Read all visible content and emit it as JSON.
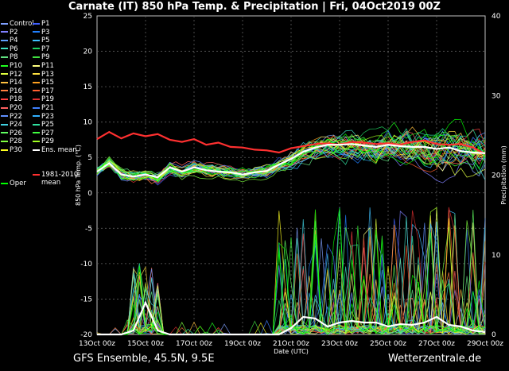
{
  "title": "Carnate  (IT)  850 hPa Temp. & Precipitation | Fri, 04Oct2019 00Z",
  "footer_left": "GFS Ensemble, 45.5N, 9.5E",
  "footer_right": "Wetterzentrale.de",
  "legend": [
    {
      "label": "Control",
      "color": "#7fa0ff"
    },
    {
      "label": "P1",
      "color": "#4060ff"
    },
    {
      "label": "P2",
      "color": "#8080ff"
    },
    {
      "label": "P3",
      "color": "#2080ff"
    },
    {
      "label": "P4",
      "color": "#60a0ff"
    },
    {
      "label": "P5",
      "color": "#40c0ff"
    },
    {
      "label": "P6",
      "color": "#40e0c0"
    },
    {
      "label": "P7",
      "color": "#20d060"
    },
    {
      "label": "P8",
      "color": "#60e080"
    },
    {
      "label": "P9",
      "color": "#40e040"
    },
    {
      "label": "P10",
      "color": "#20ff20"
    },
    {
      "label": "P11",
      "color": "#ffff80"
    },
    {
      "label": "P12",
      "color": "#e0ff40"
    },
    {
      "label": "P13",
      "color": "#ffe040"
    },
    {
      "label": "P14",
      "color": "#ffc040"
    },
    {
      "label": "P15",
      "color": "#ffa020"
    },
    {
      "label": "P16",
      "color": "#ff8040"
    },
    {
      "label": "P17",
      "color": "#ff6030"
    },
    {
      "label": "P18",
      "color": "#ff4040"
    },
    {
      "label": "P19",
      "color": "#e03030"
    },
    {
      "label": "P20",
      "color": "#ff6060"
    },
    {
      "label": "P21",
      "color": "#4080ff"
    },
    {
      "label": "P22",
      "color": "#6090ff"
    },
    {
      "label": "P23",
      "color": "#30b0ff"
    },
    {
      "label": "P24",
      "color": "#40d0e0"
    },
    {
      "label": "P25",
      "color": "#30e0a0"
    },
    {
      "label": "P26",
      "color": "#60ff60"
    },
    {
      "label": "P27",
      "color": "#40ff40"
    },
    {
      "label": "P28",
      "color": "#80ff40"
    },
    {
      "label": "P29",
      "color": "#a0ff20"
    },
    {
      "label": "P30",
      "color": "#ffff20"
    },
    {
      "label": "Ens. mean",
      "color": "#ffffff"
    },
    {
      "label": "1981-2010\nmean",
      "color": "#ff3030"
    },
    {
      "label": "Oper",
      "color": "#00ff00"
    }
  ],
  "chart_data": {
    "type": "line",
    "x_ticks": [
      "13Oct 00z",
      "15Oct 00z",
      "17Oct 00z",
      "19Oct 00z",
      "21Oct 00z",
      "23Oct 00z",
      "25Oct 00z",
      "27Oct 00z",
      "29Oct 00z"
    ],
    "xlabel": "Date (UTC)",
    "ylabel_left": "850 hPa Temp. (°C)",
    "ylabel_right": "Precipitation (mm)",
    "ylim_left": [
      -20,
      25
    ],
    "ylim_right": [
      0,
      40
    ],
    "y_ticks_left": [
      -20,
      -15,
      -10,
      -5,
      0,
      5,
      10,
      15,
      20,
      25
    ],
    "y_ticks_right": [
      0,
      10,
      20,
      30,
      40
    ],
    "grid": true,
    "x_range_hours": [
      0,
      384
    ],
    "series": [
      {
        "name": "1981-2010\nmean",
        "color": "#ff3030",
        "axis": "left",
        "x": [
          0,
          12,
          24,
          36,
          48,
          60,
          72,
          84,
          96,
          108,
          120,
          132,
          144,
          156,
          168,
          180,
          192,
          204,
          216,
          228,
          240,
          252,
          264,
          276,
          288,
          300,
          312,
          324,
          336,
          348,
          360,
          372,
          384
        ],
        "y": [
          7.6,
          8.6,
          7.7,
          8.4,
          8.0,
          8.3,
          7.5,
          7.2,
          7.6,
          6.8,
          7.1,
          6.5,
          6.4,
          6.1,
          6.0,
          5.7,
          6.3,
          6.6,
          6.9,
          7.0,
          6.8,
          7.2,
          7.1,
          6.9,
          7.0,
          6.8,
          7.2,
          7.4,
          6.9,
          6.8,
          6.9,
          6.4,
          5.5
        ]
      },
      {
        "name": "Ens. mean",
        "color": "#ffffff",
        "axis": "left",
        "x": [
          0,
          12,
          24,
          36,
          48,
          60,
          72,
          84,
          96,
          108,
          120,
          132,
          144,
          156,
          168,
          180,
          192,
          204,
          216,
          228,
          240,
          252,
          264,
          276,
          288,
          300,
          312,
          324,
          336,
          348,
          360,
          372,
          384
        ],
        "y": [
          3.0,
          4.2,
          2.6,
          2.3,
          2.6,
          2.2,
          3.6,
          3.0,
          3.6,
          3.2,
          3.0,
          2.9,
          2.6,
          2.9,
          3.1,
          4.0,
          4.8,
          5.8,
          6.4,
          6.8,
          6.8,
          6.9,
          6.7,
          6.5,
          6.8,
          6.6,
          6.5,
          6.5,
          6.2,
          6.4,
          5.9,
          5.7,
          5.6
        ]
      },
      {
        "name": "Ens. mean precipitation",
        "color": "#ffffff",
        "axis": "right",
        "x": [
          0,
          12,
          24,
          36,
          48,
          60,
          72,
          84,
          96,
          108,
          120,
          132,
          144,
          156,
          168,
          180,
          192,
          204,
          216,
          228,
          240,
          252,
          264,
          276,
          288,
          300,
          312,
          324,
          336,
          348,
          360,
          372,
          384
        ],
        "y": [
          0,
          0,
          0,
          0.5,
          4.0,
          0.5,
          0,
          0,
          0,
          0,
          0,
          0,
          0,
          0,
          0,
          0,
          0.8,
          2.2,
          2.0,
          1.0,
          1.5,
          1.7,
          1.5,
          1.5,
          1.0,
          1.3,
          1.2,
          1.5,
          2.2,
          1.2,
          1.0,
          0.5,
          0.3
        ]
      }
    ]
  }
}
